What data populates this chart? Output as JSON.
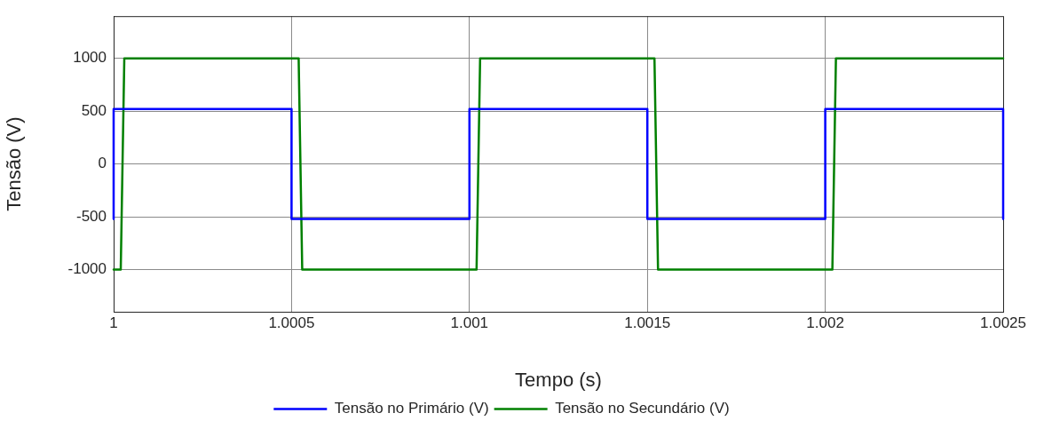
{
  "chart_data": {
    "type": "line",
    "xlabel": "Tempo (s)",
    "ylabel": "Tensão (V)",
    "xlim": [
      1,
      1.0025
    ],
    "xticks": [
      1,
      1.0005,
      1.001,
      1.0015,
      1.002,
      1.0025
    ],
    "ylim": [
      -1400,
      1400
    ],
    "yticks": [
      -1000,
      -500,
      0,
      500,
      1000
    ],
    "grid": true,
    "legend": "bottom",
    "marker": "none",
    "line_style": "solid",
    "series": [
      {
        "name": "Tensão no Primário (V)",
        "color": "#0000ff",
        "x": [
          1,
          1,
          1.0005,
          1.0005,
          1.001,
          1.001,
          1.0015,
          1.0015,
          1.002,
          1.002,
          1.0025,
          1.0025
        ],
        "values": [
          -520,
          520,
          520,
          -520,
          -520,
          520,
          520,
          -520,
          -520,
          520,
          520,
          -520
        ]
      },
      {
        "name": "Tensão no Secundário (V)",
        "color": "#008000",
        "x": [
          1,
          1.00002,
          1.00003,
          1.00052,
          1.00053,
          1.00102,
          1.00103,
          1.00152,
          1.00153,
          1.00202,
          1.00203,
          1.0025
        ],
        "values": [
          -1000,
          -1000,
          1000,
          1000,
          -1000,
          -1000,
          1000,
          1000,
          -1000,
          -1000,
          1000,
          1000
        ]
      }
    ]
  }
}
